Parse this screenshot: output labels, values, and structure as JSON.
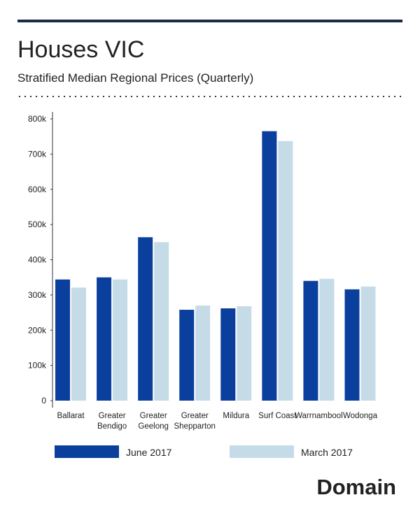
{
  "chart_data": {
    "type": "bar",
    "title": "Houses VIC",
    "subtitle": "Stratified Median Regional Prices (Quarterly)",
    "brand": "Domain",
    "categories": [
      "Ballarat",
      "Greater Bendigo",
      "Greater Geelong",
      "Greater Shepparton",
      "Mildura",
      "Surf Coast",
      "Warrnambool",
      "Wodonga"
    ],
    "series": [
      {
        "name": "June 2017",
        "color": "#0b3f9e",
        "values": [
          344000,
          350000,
          464000,
          258000,
          262000,
          765000,
          340000,
          316000
        ]
      },
      {
        "name": "March 2017",
        "color": "#c6dbe8",
        "values": [
          321000,
          344000,
          450000,
          270000,
          268000,
          737000,
          346000,
          324000
        ]
      }
    ],
    "ylim": [
      0,
      800000
    ],
    "yticks": [
      0,
      {
        "value": 100000,
        "label": "100k"
      },
      {
        "value": 200000,
        "label": "200k"
      },
      {
        "value": 300000,
        "label": "300k"
      },
      {
        "value": 400000,
        "label": "400k"
      },
      {
        "value": 500000,
        "label": "500k"
      },
      {
        "value": 600000,
        "label": "600k"
      },
      {
        "value": 700000,
        "label": "700k"
      },
      {
        "value": 800000,
        "label": "800k"
      }
    ],
    "grid": false
  }
}
